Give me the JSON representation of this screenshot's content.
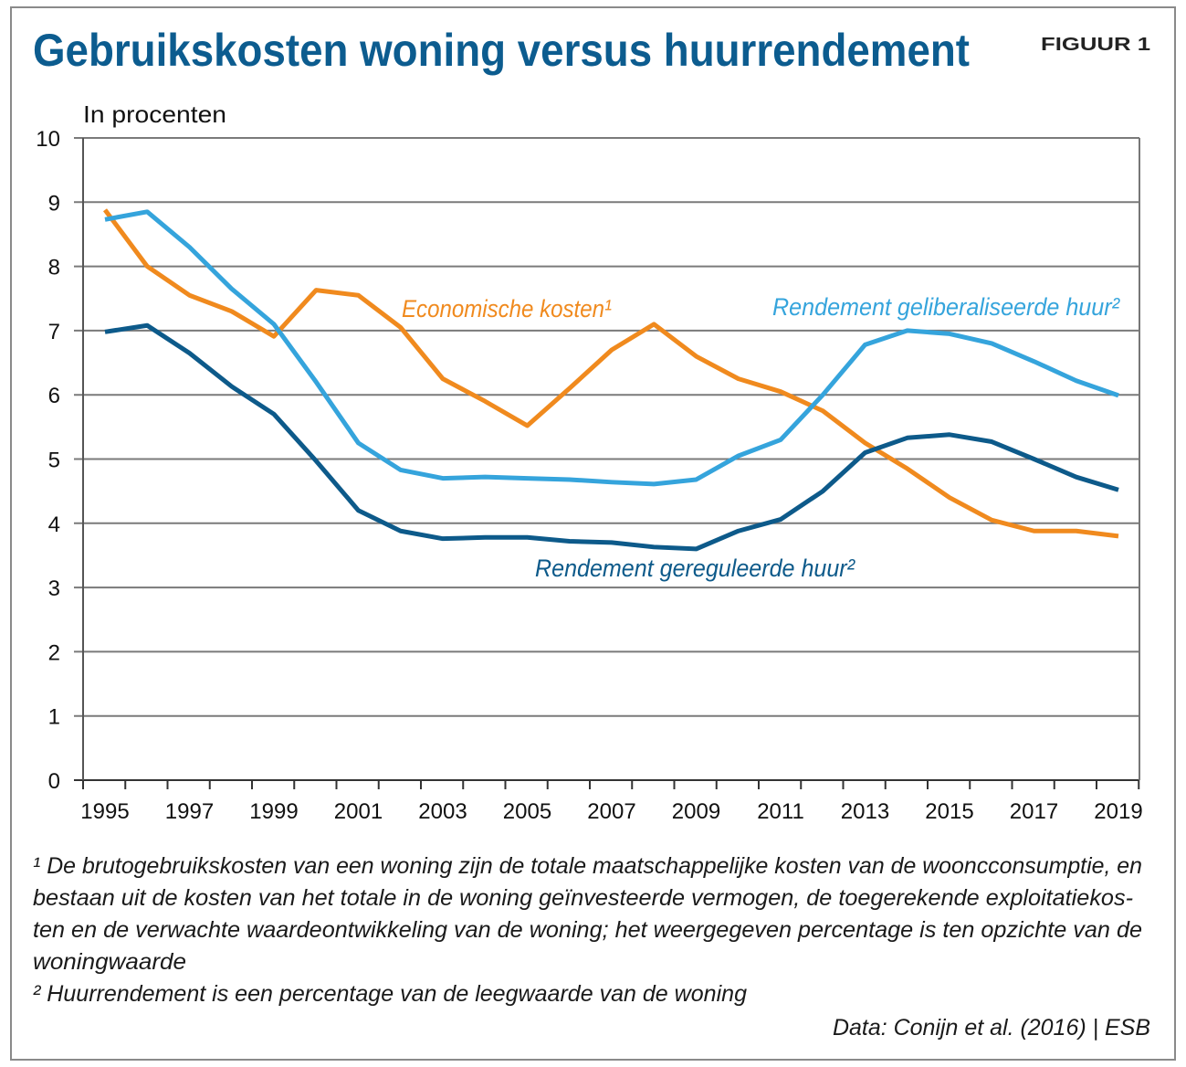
{
  "title": "Gebruikskosten woning versus huurrendement",
  "figure_label": "FIGUUR 1",
  "footnotes": {
    "note1_lines": [
      "¹ De brutogebruikskosten van een woning zijn de totale maatschappelijke kosten van de wooncconsumptie, en",
      "bestaan uit de kosten van het totale in de woning geïnvesteerde vermogen, de toegerekende exploitatiekos-",
      "ten en de verwachte waardeontwikkeling van de woning; het weergegeven percentage is ten opzichte van de",
      "woningwaarde"
    ],
    "note2": "² Huurrendement is een percentage van de leegwaarde van de woning",
    "source": "Data: Conijn et al. (2016) | ESB"
  },
  "chart_data": {
    "type": "line",
    "title": "Gebruikskosten woning versus huurrendement",
    "ylabel": "In procenten",
    "xlabel": "",
    "ylim": [
      0,
      10
    ],
    "yticks": [
      "0",
      "1",
      "2",
      "3",
      "4",
      "5",
      "6",
      "7",
      "8",
      "9",
      "10"
    ],
    "xticks": [
      "1995",
      "1997",
      "1999",
      "2001",
      "2003",
      "2005",
      "2007",
      "2009",
      "2011",
      "2013",
      "2015",
      "2017",
      "2019"
    ],
    "grid": true,
    "x": [
      1995,
      1996,
      1997,
      1998,
      1999,
      2000,
      2001,
      2002,
      2003,
      2004,
      2005,
      2006,
      2007,
      2008,
      2009,
      2010,
      2011,
      2012,
      2013,
      2014,
      2015,
      2016,
      2017,
      2018,
      2019
    ],
    "series": [
      {
        "name": "Economische kosten¹",
        "color": "#f08a1e",
        "values": [
          8.88,
          8.0,
          7.55,
          7.3,
          6.91,
          7.63,
          7.55,
          7.05,
          6.25,
          5.9,
          5.52,
          6.1,
          6.7,
          7.1,
          6.6,
          6.25,
          6.05,
          5.75,
          5.25,
          4.85,
          4.4,
          4.05,
          3.88,
          3.88,
          3.8
        ]
      },
      {
        "name": "Rendement geliberaliseerde huur²",
        "color": "#35a4dc",
        "values": [
          8.73,
          8.85,
          8.3,
          7.65,
          7.1,
          6.2,
          5.25,
          4.83,
          4.7,
          4.72,
          4.7,
          4.68,
          4.64,
          4.61,
          4.68,
          5.05,
          5.3,
          6.0,
          6.78,
          7.0,
          6.95,
          6.8,
          6.52,
          6.22,
          5.99
        ]
      },
      {
        "name": "Rendement gereguleerde huur²",
        "color": "#0d5a8a",
        "values": [
          6.98,
          7.08,
          6.65,
          6.13,
          5.7,
          4.97,
          4.2,
          3.88,
          3.76,
          3.78,
          3.78,
          3.72,
          3.7,
          3.63,
          3.6,
          3.88,
          4.06,
          4.5,
          5.1,
          5.33,
          5.38,
          5.27,
          5.0,
          4.72,
          4.52
        ]
      }
    ]
  }
}
